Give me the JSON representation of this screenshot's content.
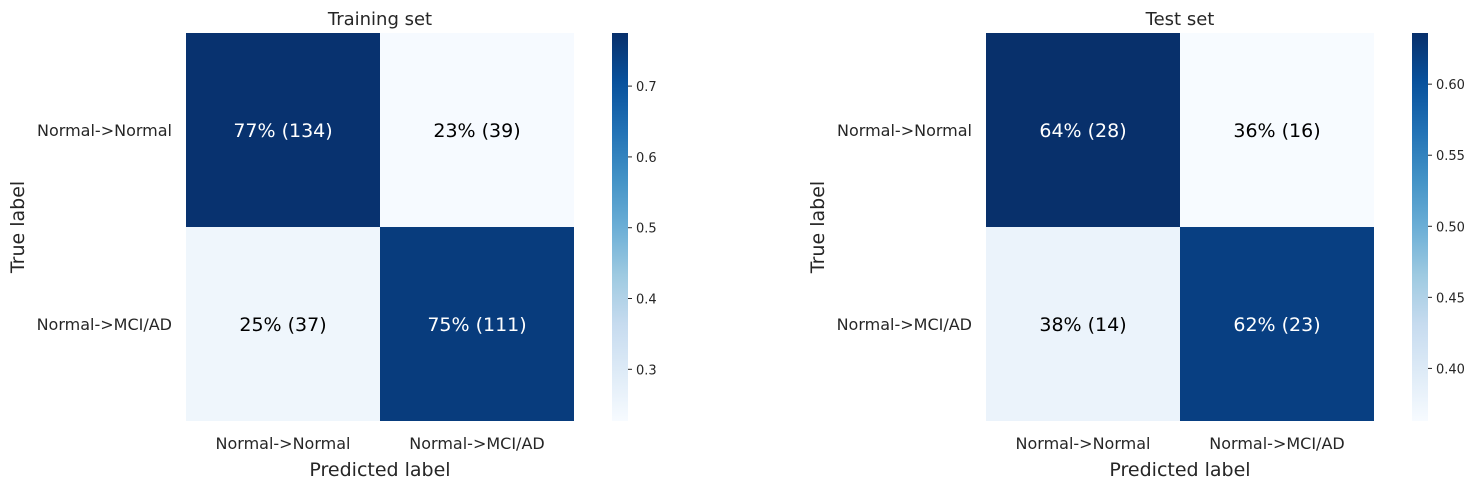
{
  "chart_data": [
    {
      "type": "heatmap",
      "title": "Training set",
      "xlabel": "Predicted label",
      "ylabel": "True label",
      "x_categories": [
        "Normal->Normal",
        "Normal->MCI/AD"
      ],
      "y_categories": [
        "Normal->Normal",
        "Normal->MCI/AD"
      ],
      "values": [
        [
          0.77,
          0.23
        ],
        [
          0.25,
          0.75
        ]
      ],
      "counts": [
        [
          134,
          39
        ],
        [
          37,
          111
        ]
      ],
      "annotations": [
        [
          "77%  (134)",
          "23%  (39)"
        ],
        [
          "25%  (37)",
          "75%  (111)"
        ]
      ],
      "colorbar": {
        "range": [
          0.227,
          0.775
        ],
        "ticks": [
          0.3,
          0.4,
          0.5,
          0.6,
          0.7
        ],
        "tick_labels": [
          "0.3",
          "0.4",
          "0.5",
          "0.6",
          "0.7"
        ],
        "colormap": "Blues"
      },
      "grid": false
    },
    {
      "type": "heatmap",
      "title": "Test set",
      "xlabel": "Predicted label",
      "ylabel": "True label",
      "x_categories": [
        "Normal->Normal",
        "Normal->MCI/AD"
      ],
      "y_categories": [
        "Normal->Normal",
        "Normal->MCI/AD"
      ],
      "values": [
        [
          0.64,
          0.36
        ],
        [
          0.38,
          0.62
        ]
      ],
      "counts": [
        [
          28,
          16
        ],
        [
          14,
          23
        ]
      ],
      "annotations": [
        [
          "64%  (28)",
          "36%  (16)"
        ],
        [
          "38%  (14)",
          "62%  (23)"
        ]
      ],
      "colorbar": {
        "range": [
          0.363,
          0.636
        ],
        "ticks": [
          0.4,
          0.45,
          0.5,
          0.55,
          0.6
        ],
        "tick_labels": [
          "0.40",
          "0.45",
          "0.50",
          "0.55",
          "0.60"
        ],
        "colormap": "Blues"
      },
      "grid": false
    }
  ],
  "colors": {
    "cmap_low": "#f7fbff",
    "cmap_high": "#08306b",
    "text_dark": "#000000",
    "text_light": "#ffffff"
  }
}
